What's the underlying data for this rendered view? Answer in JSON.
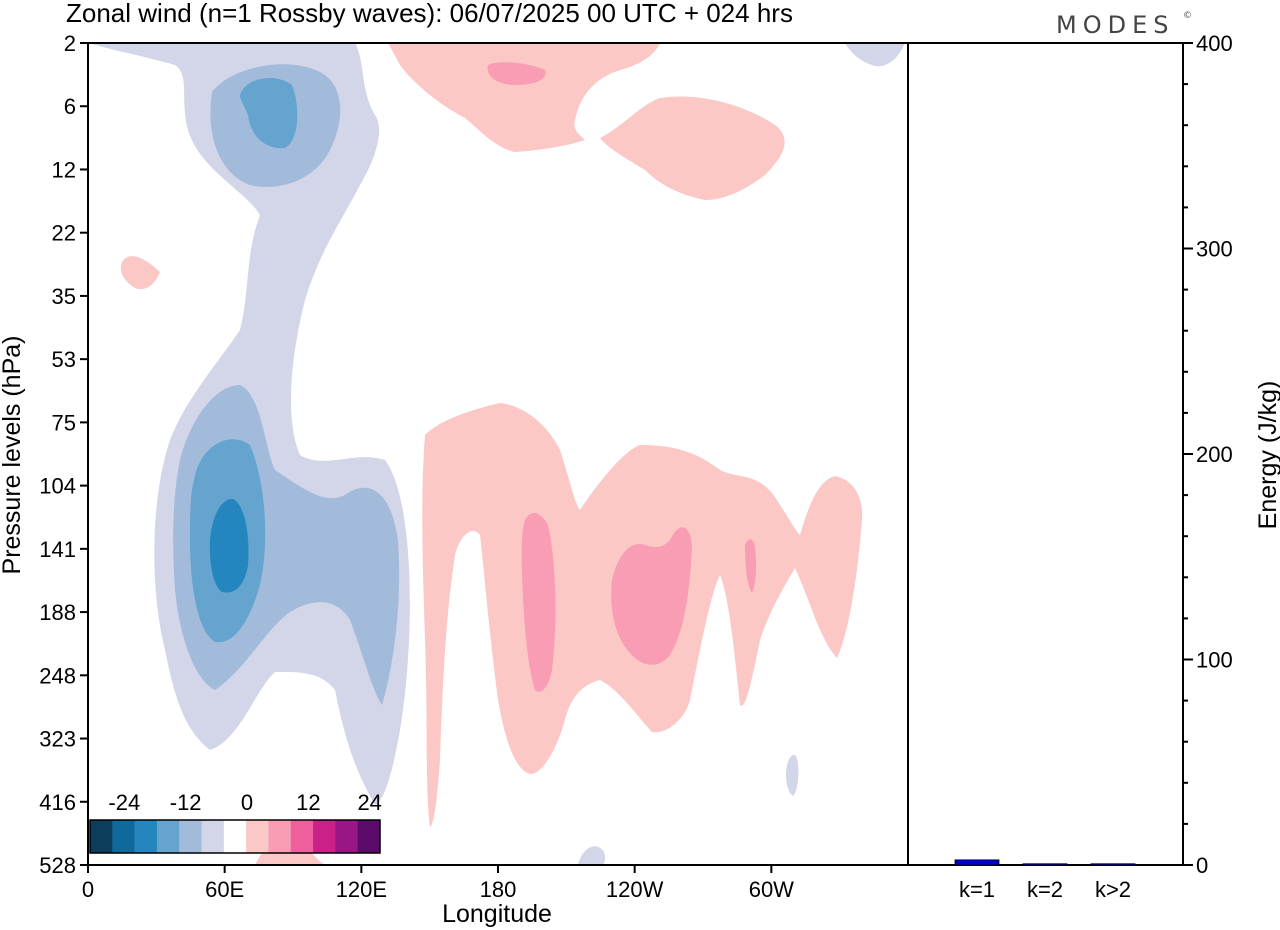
{
  "header": {
    "title": "Zonal wind (n=1 Rossby waves):  06/07/2025  00 UTC  + 024 hrs",
    "logo": "MODES",
    "logo_mark": "©"
  },
  "chart_data": [
    {
      "type": "contour",
      "xlabel": "Longitude",
      "ylabel": "Pressure levels (hPa)",
      "x_ticks": [
        "0",
        "60E",
        "120E",
        "180",
        "120W",
        "60W"
      ],
      "x_tick_values": [
        0,
        60,
        120,
        180,
        240,
        300
      ],
      "xlim": [
        0,
        360
      ],
      "y_ticks": [
        "2",
        "6",
        "12",
        "22",
        "35",
        "53",
        "75",
        "104",
        "141",
        "188",
        "248",
        "323",
        "416",
        "528"
      ],
      "y_scale": "model levels (pressure decreasing upward)",
      "colorbar": {
        "tick_labels": [
          "-24",
          "-12",
          "0",
          "12",
          "24"
        ],
        "colors": [
          "#0d3d5c",
          "#10699c",
          "#2585be",
          "#65a4cf",
          "#a3bbdb",
          "#d3d5e8",
          "#ffffff",
          "#fbc8c5",
          "#f89db4",
          "#ee5f9e",
          "#cb1f8a",
          "#981685",
          "#5c0a6b"
        ]
      },
      "features": [
        {
          "sign": "negative",
          "center_longitude": 60,
          "center_level": "141",
          "min_band": "-18"
        },
        {
          "sign": "negative",
          "center_longitude": 82,
          "center_level": "6",
          "min_band": "-12"
        },
        {
          "sign": "positive",
          "center_longitude": 170,
          "center_level": "188",
          "max_band": "6"
        },
        {
          "sign": "positive",
          "center_longitude": 236,
          "center_level": "141",
          "max_band": "6"
        },
        {
          "sign": "positive",
          "center_longitude": 180,
          "center_level": "2",
          "max_band": "6"
        }
      ]
    },
    {
      "type": "bar",
      "categories": [
        "k=1",
        "k=2",
        "k>2"
      ],
      "values": [
        2.5,
        0.6,
        0.6
      ],
      "ylabel": "Energy (J/kg)",
      "ylim": [
        0,
        400
      ],
      "y_ticks": [
        "0",
        "100",
        "200",
        "300",
        "400"
      ],
      "bar_color": "#0000cc"
    }
  ]
}
